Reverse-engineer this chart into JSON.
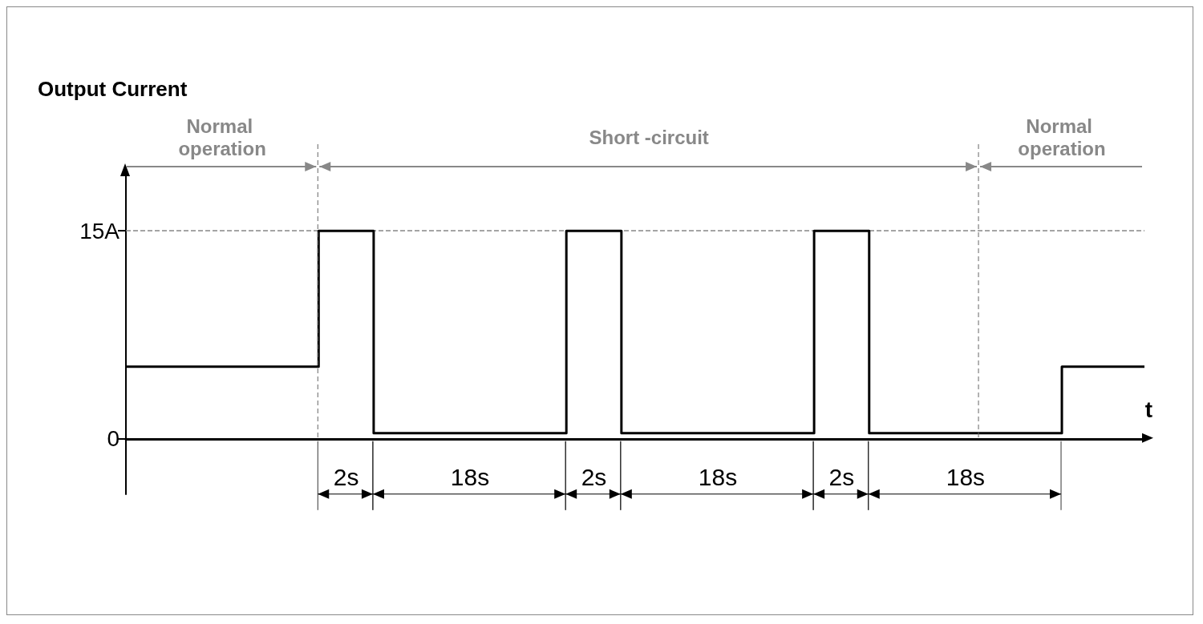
{
  "chart_data": {
    "type": "step",
    "xlabel": "t",
    "ylabel": "Output Current",
    "tick_labels": "y",
    "categories": [
      null,
      null,
      null,
      null,
      null,
      null,
      null,
      null,
      null,
      null,
      null,
      null,
      null,
      null,
      null,
      null,
      null,
      null,
      null,
      null,
      null,
      null,
      null,
      null,
      null,
      null,
      null,
      null,
      null,
      null,
      null,
      null,
      null,
      null,
      null,
      null,
      null,
      null
    ],
    "series": [
      {
        "color": "#000000",
        "values": [
          5.2,
          5.2,
          5.2,
          5.2,
          5.2,
          5.2,
          5.2,
          15,
          15,
          0.4,
          0.4,
          0.4,
          0.4,
          0.4,
          0.4,
          0.4,
          15,
          15,
          0.4,
          0.4,
          0.4,
          0.4,
          0.4,
          0.4,
          0.4,
          15,
          15,
          0.4,
          0.4,
          0.4,
          0.4,
          0.4,
          0.4,
          0.4,
          5.2,
          5.2,
          5.2,
          5.2
        ]
      }
    ],
    "ylim": [
      -4,
      19
    ],
    "yticks": [
      0,
      {
        "value": 15,
        "label": "15A"
      }
    ],
    "ref_lines": [
      {
        "axis": "y",
        "value": 15,
        "color": "#888888",
        "line_style": "dashed"
      }
    ],
    "annotations": [
      "Normal operation",
      "Short -circuit",
      "Normal operation",
      "2s",
      "18s",
      "2s",
      "18s",
      "2s",
      "18s"
    ]
  }
}
